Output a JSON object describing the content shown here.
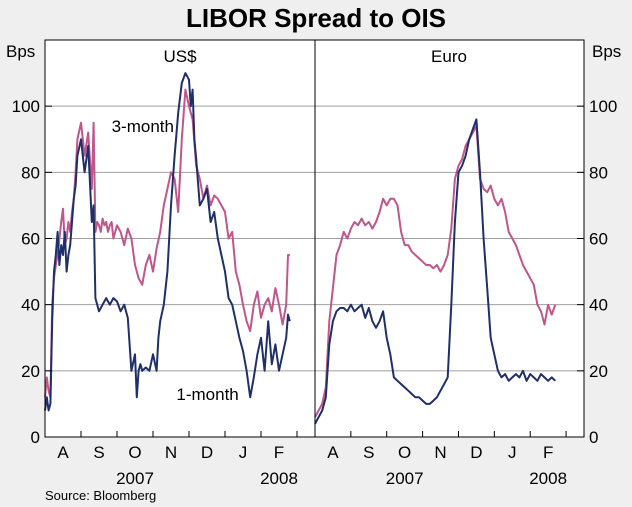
{
  "chart_data": {
    "type": "line",
    "title": "LIBOR Spread to OIS",
    "ylabel_left": "Bps",
    "ylabel_right": "Bps",
    "ylim": [
      0,
      120
    ],
    "yticks": [
      0,
      20,
      40,
      60,
      80,
      100
    ],
    "grid": true,
    "source": "Source: Bloomberg",
    "colors": {
      "one_month": "#1f2f6b",
      "three_month": "#c0568a",
      "axis": "#000000",
      "grid": "#a0a0a0",
      "plot_bg": "#ffffff",
      "page_bg": "#efefef"
    },
    "panels": [
      {
        "name": "US$",
        "xlim": [
          0,
          7.5
        ],
        "month_ticks": [
          "A",
          "S",
          "O",
          "N",
          "D",
          "J",
          "F"
        ],
        "year_labels": [
          {
            "text": "2007",
            "x": 2.5
          },
          {
            "text": "2008",
            "x": 6.5
          }
        ],
        "annotations": [
          {
            "text": "3-month",
            "x": 1.85,
            "y": 94,
            "series": "3-month"
          },
          {
            "text": "1-month",
            "x": 3.65,
            "y": 13,
            "series": "1-month"
          }
        ],
        "series": [
          {
            "name": "3-month",
            "x": [
              0,
              0.05,
              0.1,
              0.15,
              0.2,
              0.25,
              0.3,
              0.35,
              0.4,
              0.45,
              0.5,
              0.55,
              0.6,
              0.65,
              0.7,
              0.75,
              0.8,
              0.85,
              0.9,
              1.0,
              1.1,
              1.2,
              1.3,
              1.35,
              1.4,
              1.45,
              1.5,
              1.55,
              1.6,
              1.65,
              1.7,
              1.75,
              1.8,
              1.85,
              1.9,
              2.0,
              2.1,
              2.2,
              2.3,
              2.4,
              2.5,
              2.6,
              2.7,
              2.8,
              2.9,
              3.0,
              3.1,
              3.2,
              3.3,
              3.4,
              3.5,
              3.6,
              3.7,
              3.8,
              3.9,
              4.0,
              4.1,
              4.2,
              4.3,
              4.4,
              4.5,
              4.6,
              4.7,
              4.8,
              4.9,
              5.0,
              5.1,
              5.2,
              5.3,
              5.4,
              5.5,
              5.6,
              5.7,
              5.8,
              5.9,
              6.0,
              6.1,
              6.2,
              6.3,
              6.4,
              6.5,
              6.6,
              6.7,
              6.75,
              6.8
            ],
            "y": [
              12,
              18,
              14,
              12,
              40,
              48,
              52,
              55,
              60,
              65,
              69,
              58,
              60,
              65,
              62,
              68,
              72,
              80,
              90,
              95,
              85,
              92,
              75,
              95,
              62,
              65,
              64,
              62,
              66,
              64,
              65,
              62,
              64,
              65,
              60,
              64,
              62,
              58,
              63,
              60,
              52,
              48,
              46,
              52,
              55,
              50,
              57,
              62,
              70,
              75,
              80,
              78,
              68,
              90,
              105,
              100,
              96,
              82,
              78,
              72,
              76,
              70,
              73,
              72,
              70,
              68,
              60,
              62,
              50,
              46,
              40,
              35,
              32,
              40,
              44,
              36,
              40,
              42,
              38,
              45,
              40,
              34,
              40,
              55,
              55
            ]
          },
          {
            "name": "1-month",
            "x": [
              0,
              0.05,
              0.1,
              0.15,
              0.2,
              0.25,
              0.3,
              0.35,
              0.4,
              0.45,
              0.5,
              0.55,
              0.6,
              0.65,
              0.7,
              0.75,
              0.8,
              0.85,
              0.9,
              1.0,
              1.1,
              1.2,
              1.3,
              1.35,
              1.4,
              1.5,
              1.6,
              1.7,
              1.8,
              1.9,
              2.0,
              2.1,
              2.2,
              2.3,
              2.4,
              2.5,
              2.55,
              2.6,
              2.65,
              2.7,
              2.8,
              2.9,
              3.0,
              3.1,
              3.15,
              3.2,
              3.3,
              3.4,
              3.5,
              3.6,
              3.7,
              3.8,
              3.9,
              4.0,
              4.05,
              4.1,
              4.15,
              4.2,
              4.3,
              4.4,
              4.5,
              4.6,
              4.7,
              4.8,
              4.9,
              5.0,
              5.1,
              5.2,
              5.3,
              5.4,
              5.5,
              5.6,
              5.7,
              5.8,
              5.9,
              6.0,
              6.1,
              6.2,
              6.3,
              6.4,
              6.5,
              6.6,
              6.7,
              6.75,
              6.8
            ],
            "y": [
              8,
              12,
              8,
              10,
              35,
              50,
              55,
              62,
              52,
              58,
              55,
              62,
              50,
              55,
              58,
              65,
              72,
              76,
              85,
              90,
              80,
              88,
              65,
              70,
              42,
              38,
              40,
              42,
              40,
              42,
              41,
              38,
              40,
              36,
              20,
              25,
              12,
              20,
              22,
              20,
              21,
              20,
              25,
              20,
              30,
              35,
              40,
              50,
              70,
              85,
              98,
              107,
              110,
              108,
              100,
              105,
              90,
              84,
              70,
              72,
              75,
              65,
              68,
              60,
              55,
              50,
              42,
              40,
              35,
              30,
              26,
              20,
              12,
              18,
              25,
              30,
              20,
              35,
              22,
              28,
              20,
              25,
              30,
              37,
              35
            ]
          }
        ]
      },
      {
        "name": "Euro",
        "xlim": [
          0,
          7.5
        ],
        "month_ticks": [
          "A",
          "S",
          "O",
          "N",
          "D",
          "J",
          "F"
        ],
        "year_labels": [
          {
            "text": "2007",
            "x": 2.5
          },
          {
            "text": "2008",
            "x": 6.5
          }
        ],
        "annotations": [],
        "series": [
          {
            "name": "3-month",
            "x": [
              0,
              0.1,
              0.2,
              0.3,
              0.4,
              0.5,
              0.6,
              0.7,
              0.8,
              0.9,
              1.0,
              1.1,
              1.2,
              1.3,
              1.4,
              1.5,
              1.6,
              1.7,
              1.8,
              1.9,
              2.0,
              2.1,
              2.2,
              2.3,
              2.4,
              2.5,
              2.6,
              2.7,
              2.8,
              2.9,
              3.0,
              3.1,
              3.2,
              3.3,
              3.4,
              3.5,
              3.6,
              3.7,
              3.8,
              3.9,
              4.0,
              4.1,
              4.2,
              4.3,
              4.4,
              4.5,
              4.6,
              4.7,
              4.8,
              4.9,
              5.0,
              5.1,
              5.2,
              5.3,
              5.4,
              5.5,
              5.6,
              5.7,
              5.8,
              5.9,
              6.0,
              6.1,
              6.2,
              6.3,
              6.4,
              6.5,
              6.6,
              6.7
            ],
            "y": [
              6,
              8,
              10,
              15,
              35,
              45,
              55,
              58,
              62,
              60,
              63,
              65,
              64,
              66,
              64,
              65,
              63,
              65,
              68,
              72,
              70,
              72,
              72,
              70,
              62,
              58,
              58,
              56,
              55,
              54,
              53,
              52,
              52,
              51,
              52,
              50,
              52,
              55,
              63,
              78,
              82,
              84,
              88,
              90,
              92,
              94,
              78,
              75,
              74,
              76,
              72,
              70,
              72,
              68,
              62,
              60,
              58,
              55,
              52,
              50,
              48,
              46,
              40,
              38,
              34,
              40,
              37,
              40
            ]
          },
          {
            "name": "1-month",
            "x": [
              0,
              0.1,
              0.2,
              0.3,
              0.4,
              0.5,
              0.6,
              0.7,
              0.8,
              0.9,
              1.0,
              1.1,
              1.2,
              1.3,
              1.4,
              1.5,
              1.6,
              1.7,
              1.8,
              1.9,
              2.0,
              2.1,
              2.2,
              2.3,
              2.4,
              2.5,
              2.6,
              2.7,
              2.8,
              2.9,
              3.0,
              3.1,
              3.2,
              3.3,
              3.4,
              3.5,
              3.6,
              3.7,
              3.8,
              3.9,
              4.0,
              4.1,
              4.2,
              4.3,
              4.4,
              4.5,
              4.6,
              4.7,
              4.8,
              4.9,
              5.0,
              5.1,
              5.2,
              5.3,
              5.4,
              5.5,
              5.6,
              5.7,
              5.8,
              5.9,
              6.0,
              6.1,
              6.2,
              6.3,
              6.4,
              6.5,
              6.6,
              6.7
            ],
            "y": [
              4,
              6,
              8,
              12,
              28,
              35,
              38,
              39,
              39,
              38,
              40,
              38,
              39,
              40,
              36,
              39,
              35,
              33,
              35,
              38,
              30,
              25,
              18,
              17,
              16,
              15,
              14,
              13,
              12,
              12,
              11,
              10,
              10,
              11,
              12,
              14,
              16,
              18,
              40,
              65,
              80,
              82,
              85,
              90,
              93,
              96,
              80,
              60,
              45,
              30,
              25,
              20,
              18,
              19,
              17,
              18,
              19,
              18,
              20,
              17,
              19,
              18,
              17,
              19,
              18,
              17,
              18,
              17
            ]
          }
        ]
      }
    ]
  }
}
